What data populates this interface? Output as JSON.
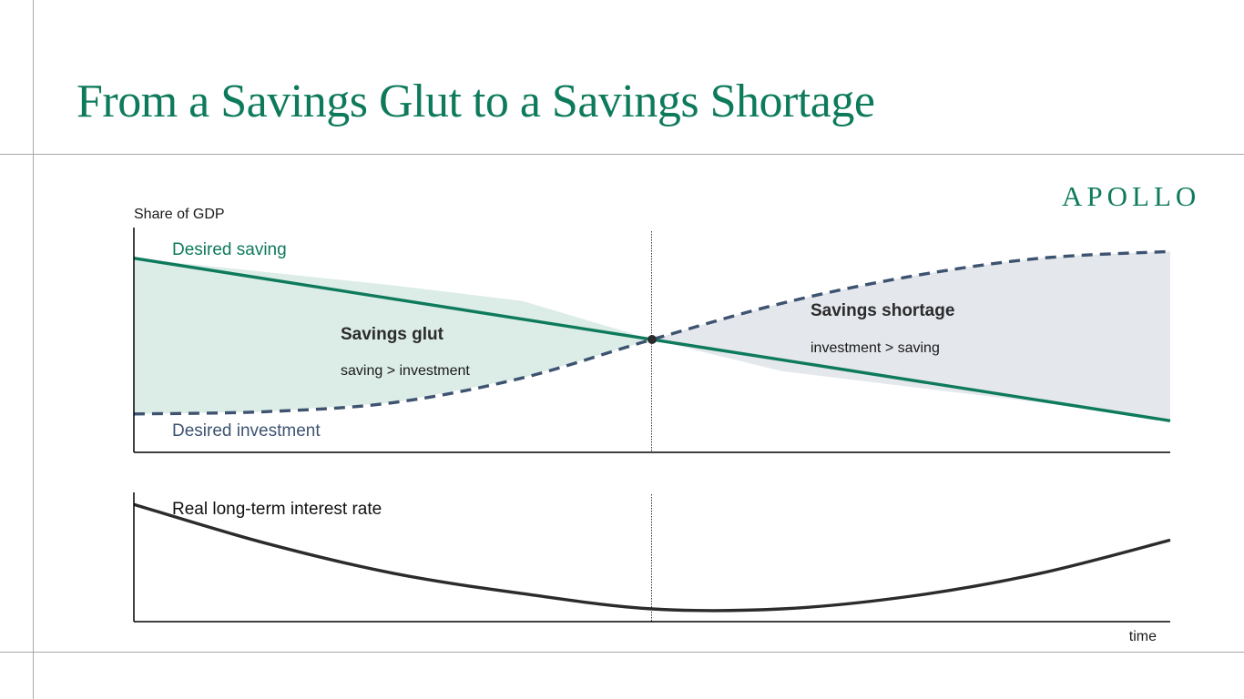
{
  "slide": {
    "title": "From a Savings Glut to a Savings Shortage",
    "logo": "APOLLO"
  },
  "colors": {
    "title": "#0e7a5c",
    "saving_line": "#0e7a5c",
    "investment_line": "#3d5370",
    "glut_fill": "#dcece7",
    "shortage_fill": "#e4e7ec",
    "rate_line": "#2b2b2b",
    "axis": "#000000",
    "guide": "#a8a8a8"
  },
  "chart_data": [
    {
      "type": "line",
      "ylabel": "Share of GDP",
      "x": [
        0,
        0.125,
        0.25,
        0.375,
        0.5,
        0.625,
        0.75,
        0.875,
        1
      ],
      "series": [
        {
          "name": "Desired saving",
          "style": "solid",
          "values": [
            0.86,
            0.8,
            0.74,
            0.67,
            0.5,
            0.36,
            0.29,
            0.22,
            0.14
          ]
        },
        {
          "name": "Desired investment",
          "style": "dashed",
          "values": [
            0.17,
            0.18,
            0.22,
            0.33,
            0.5,
            0.66,
            0.78,
            0.86,
            0.89
          ]
        }
      ],
      "crossover_x": 0.5,
      "regions": [
        {
          "label": "Savings glut",
          "sublabel": "saving > investment"
        },
        {
          "label": "Savings shortage",
          "sublabel": "investment > saving"
        }
      ],
      "grid": false
    },
    {
      "type": "line",
      "xlabel": "time",
      "series": [
        {
          "name": "Real long-term interest rate",
          "style": "solid",
          "values": [
            0.92,
            0.62,
            0.38,
            0.22,
            0.1,
            0.1,
            0.2,
            0.38,
            0.64
          ]
        }
      ],
      "grid": false
    }
  ]
}
